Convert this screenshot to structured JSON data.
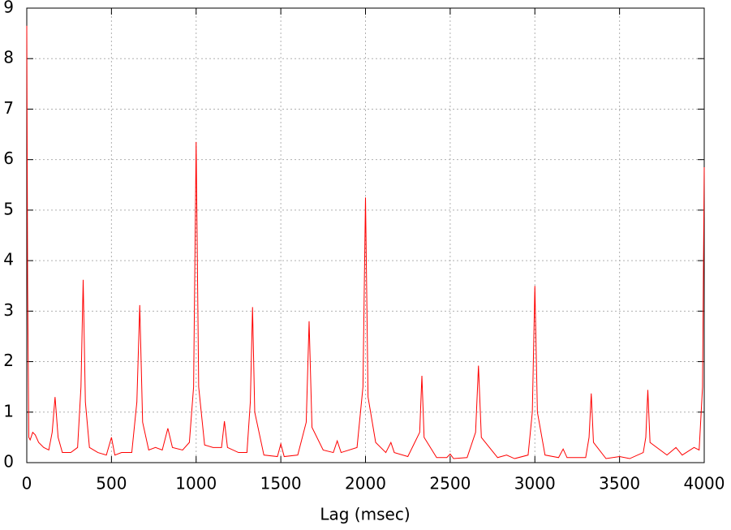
{
  "chart_data": {
    "type": "line",
    "x_label": "Lag (msec)",
    "xlim": [
      0,
      4000
    ],
    "xticks": [
      0,
      500,
      1000,
      1500,
      2000,
      2500,
      3000,
      3500,
      4000
    ],
    "ylim": [
      0,
      9
    ],
    "yticks": [
      0,
      1,
      2,
      3,
      4,
      5,
      6,
      7,
      8,
      9
    ],
    "grid": true,
    "x": [
      0,
      5,
      12,
      20,
      35,
      50,
      70,
      100,
      130,
      150,
      167,
      185,
      210,
      260,
      300,
      320,
      333,
      346,
      370,
      420,
      470,
      500,
      520,
      560,
      620,
      650,
      667,
      684,
      720,
      760,
      800,
      833,
      860,
      920,
      960,
      985,
      1000,
      1015,
      1050,
      1100,
      1150,
      1167,
      1185,
      1250,
      1300,
      1320,
      1333,
      1346,
      1400,
      1480,
      1500,
      1520,
      1600,
      1650,
      1667,
      1684,
      1750,
      1810,
      1833,
      1856,
      1950,
      1985,
      2000,
      2015,
      2060,
      2120,
      2150,
      2170,
      2250,
      2320,
      2333,
      2346,
      2420,
      2480,
      2500,
      2520,
      2600,
      2650,
      2667,
      2684,
      2780,
      2833,
      2880,
      2960,
      2985,
      3000,
      3015,
      3060,
      3140,
      3167,
      3190,
      3300,
      3320,
      3333,
      3346,
      3420,
      3500,
      3560,
      3640,
      3655,
      3667,
      3680,
      3780,
      3833,
      3870,
      3940,
      3970,
      3990,
      4000
    ],
    "series": [
      {
        "color": "#ff0000",
        "values": [
          8.65,
          3.5,
          0.5,
          0.45,
          0.6,
          0.55,
          0.4,
          0.3,
          0.25,
          0.6,
          1.3,
          0.5,
          0.2,
          0.2,
          0.3,
          1.5,
          3.62,
          1.2,
          0.3,
          0.2,
          0.15,
          0.5,
          0.15,
          0.2,
          0.2,
          1.2,
          3.12,
          0.8,
          0.25,
          0.3,
          0.25,
          0.68,
          0.3,
          0.25,
          0.4,
          1.5,
          6.35,
          1.5,
          0.35,
          0.3,
          0.3,
          0.82,
          0.3,
          0.2,
          0.2,
          1.2,
          3.08,
          1.0,
          0.15,
          0.12,
          0.37,
          0.12,
          0.15,
          0.8,
          2.8,
          0.7,
          0.25,
          0.2,
          0.43,
          0.2,
          0.3,
          1.5,
          5.25,
          1.3,
          0.4,
          0.2,
          0.4,
          0.2,
          0.12,
          0.6,
          1.72,
          0.5,
          0.1,
          0.1,
          0.17,
          0.08,
          0.1,
          0.6,
          1.92,
          0.5,
          0.1,
          0.15,
          0.08,
          0.15,
          1.0,
          3.5,
          1.0,
          0.15,
          0.1,
          0.27,
          0.1,
          0.1,
          0.5,
          1.37,
          0.4,
          0.08,
          0.12,
          0.08,
          0.2,
          0.5,
          1.44,
          0.4,
          0.15,
          0.3,
          0.15,
          0.3,
          0.25,
          1.5,
          5.85
        ]
      }
    ]
  }
}
